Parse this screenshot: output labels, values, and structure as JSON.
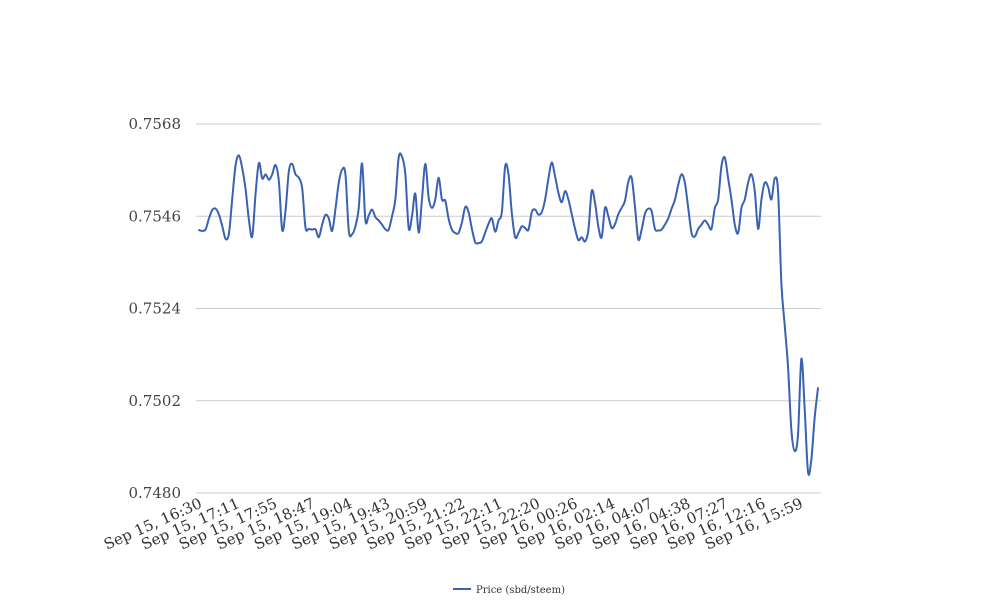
{
  "chart_data": {
    "type": "line",
    "title": "",
    "xlabel": "",
    "ylabel": "",
    "ylim": [
      0.748,
      0.7568
    ],
    "yticks": [
      "0.7568",
      "0.7546",
      "0.7524",
      "0.7502",
      "0.7480"
    ],
    "ytick_values": [
      0.7568,
      0.7546,
      0.7524,
      0.7502,
      0.748
    ],
    "grid": true,
    "legend_placement": "bottom-center",
    "x_tick_labels": [
      "Sep 15, 16:30",
      "Sep 15, 17:11",
      "Sep 15, 17:55",
      "Sep 15, 18:47",
      "Sep 15, 19:04",
      "Sep 15, 19:43",
      "Sep 15, 20:59",
      "Sep 15, 21:22",
      "Sep 15, 22:11",
      "Sep 15, 22:20",
      "Sep 16, 00:26",
      "Sep 16, 02:14",
      "Sep 16, 04:07",
      "Sep 16, 04:38",
      "Sep 16, 07:27",
      "Sep 16, 12:16",
      "Sep 16, 15:59"
    ],
    "series": [
      {
        "name": "Price (sbd/steem)",
        "color": "#3a62b0",
        "values": [
          0.75427,
          0.75425,
          0.75429,
          0.75455,
          0.75475,
          0.75478,
          0.75464,
          0.75436,
          0.75406,
          0.75419,
          0.75503,
          0.75582,
          0.75605,
          0.75574,
          0.75524,
          0.75451,
          0.75412,
          0.75514,
          0.75587,
          0.7555,
          0.7556,
          0.75547,
          0.7556,
          0.75582,
          0.75543,
          0.75427,
          0.75473,
          0.75567,
          0.75585,
          0.7556,
          0.75552,
          0.75527,
          0.75433,
          0.7543,
          0.75428,
          0.75429,
          0.7541,
          0.7544,
          0.75463,
          0.75455,
          0.75425,
          0.75477,
          0.7554,
          0.75571,
          0.7556,
          0.75426,
          0.75417,
          0.75436,
          0.7548,
          0.75586,
          0.7545,
          0.75462,
          0.75476,
          0.75458,
          0.7545,
          0.7544,
          0.75429,
          0.75428,
          0.7546,
          0.755,
          0.756,
          0.75602,
          0.75561,
          0.75432,
          0.7546,
          0.75514,
          0.75421,
          0.755,
          0.75585,
          0.75505,
          0.7548,
          0.755,
          0.75552,
          0.755,
          0.75497,
          0.75454,
          0.75428,
          0.7542,
          0.7542,
          0.75445,
          0.75482,
          0.7547,
          0.7543,
          0.75398,
          0.75396,
          0.754,
          0.75421,
          0.75442,
          0.75455,
          0.75423,
          0.7545,
          0.7547,
          0.75579,
          0.7556,
          0.75467,
          0.7541,
          0.7542,
          0.75436,
          0.75432,
          0.75428,
          0.7547,
          0.75476,
          0.75464,
          0.7547,
          0.755,
          0.7555,
          0.75588,
          0.75555,
          0.75516,
          0.75493,
          0.7552,
          0.755,
          0.75465,
          0.7543,
          0.75403,
          0.7541,
          0.754,
          0.75427,
          0.7552,
          0.75492,
          0.75435,
          0.7541,
          0.7548,
          0.7546,
          0.75432,
          0.75441,
          0.75465,
          0.7548,
          0.75497,
          0.75542,
          0.75552,
          0.75483,
          0.75405,
          0.75428,
          0.75466,
          0.75478,
          0.75472,
          0.7543,
          0.75426,
          0.75428,
          0.7544,
          0.75455,
          0.75478,
          0.75499,
          0.75535,
          0.7556,
          0.7554,
          0.7548,
          0.7542,
          0.75412,
          0.7543,
          0.7544,
          0.7545,
          0.7544,
          0.7543,
          0.7548,
          0.755,
          0.7558,
          0.756,
          0.7555,
          0.755,
          0.7544,
          0.7542,
          0.7548,
          0.755,
          0.7554,
          0.7556,
          0.7552,
          0.7543,
          0.755,
          0.7554,
          0.7553,
          0.755,
          0.7555,
          0.7552,
          0.753,
          0.752,
          0.751,
          0.7495,
          0.749,
          0.7494,
          0.7512,
          0.75,
          0.7485,
          0.7488,
          0.7498,
          0.7505
        ]
      }
    ]
  }
}
